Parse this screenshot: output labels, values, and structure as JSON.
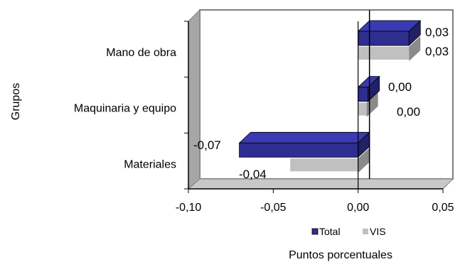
{
  "chart_data": {
    "type": "bar",
    "orientation": "horizontal",
    "categories": [
      "Mano de obra",
      "Maquinaria y equipo",
      "Materiales"
    ],
    "series": [
      {
        "name": "Total",
        "values": [
          0.03,
          0.0,
          -0.07
        ],
        "labels": [
          "0,03",
          "0,00",
          "-0,07"
        ],
        "color": "#2e2e8f"
      },
      {
        "name": "VIS",
        "values": [
          0.03,
          0.0,
          -0.04
        ],
        "labels": [
          "0,03",
          "0,00",
          "-0,04"
        ],
        "color": "#c0c0c0"
      }
    ],
    "xlim": [
      -0.1,
      0.05
    ],
    "xticks": [
      "-0,10",
      "-0,05",
      "0,00",
      "0,05"
    ],
    "xlabel": "Puntos porcentuales",
    "ylabel": "Grupos",
    "legend": "bottom-right",
    "grid": false
  }
}
